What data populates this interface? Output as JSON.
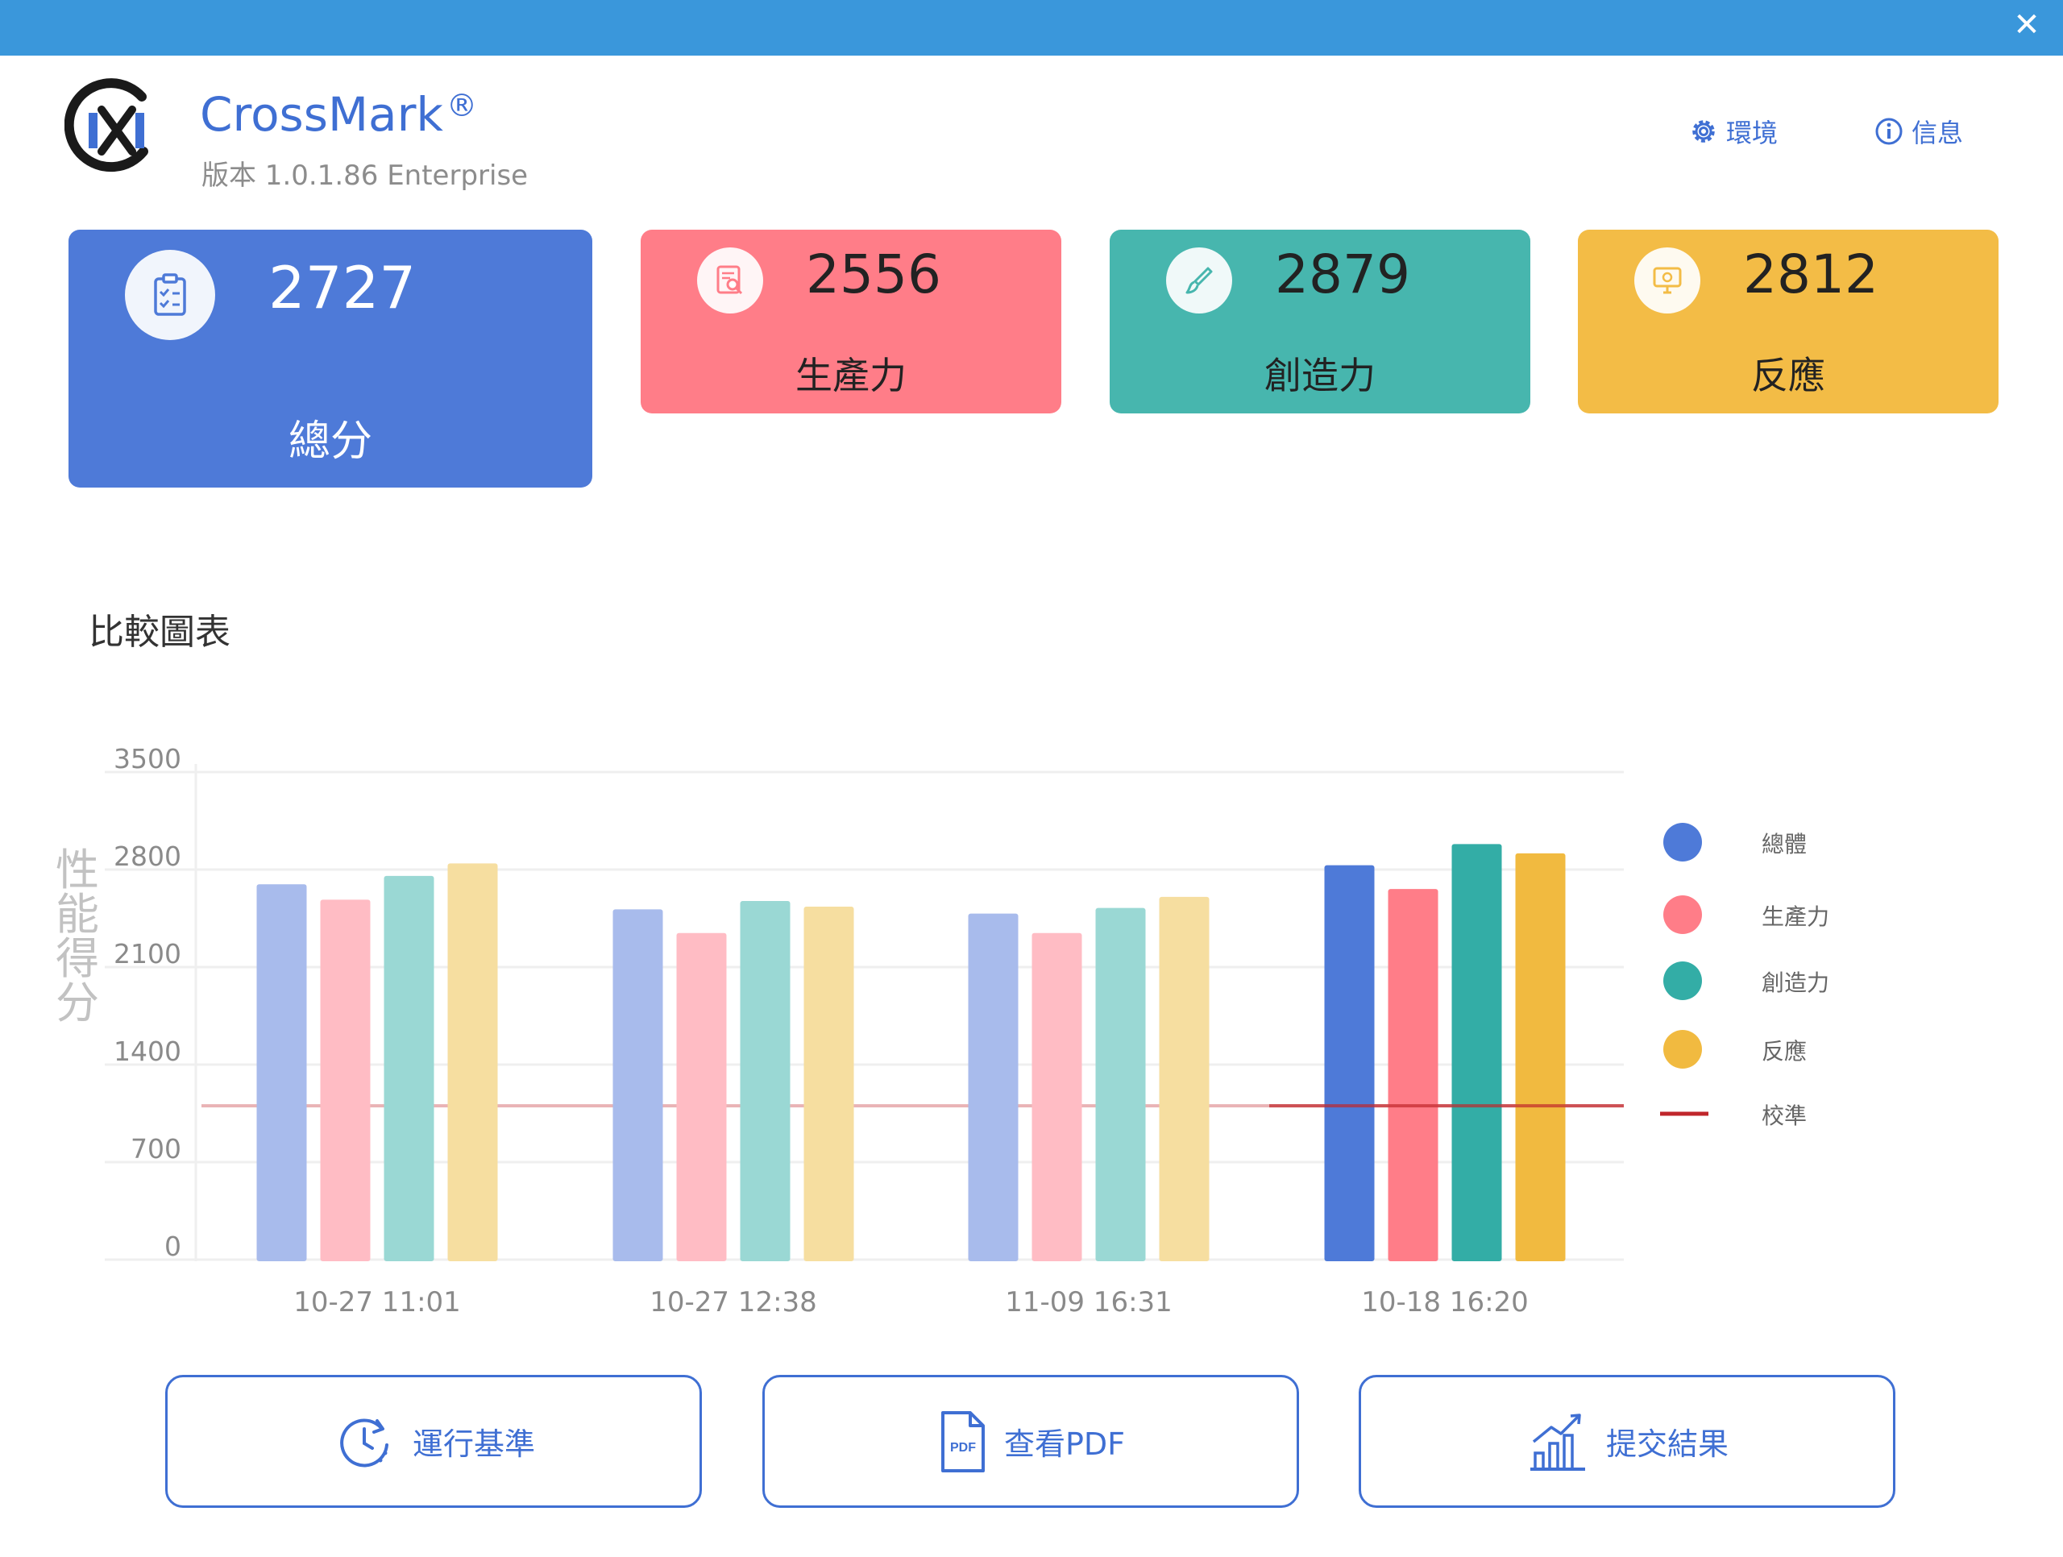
{
  "window": {
    "close_label": "✕"
  },
  "app": {
    "name": "CrossMark",
    "reg": "®",
    "version": "版本 1.0.1.86 Enterprise"
  },
  "header": {
    "settings_label": "環境",
    "info_label": "信息"
  },
  "scores": {
    "total": {
      "value": "2727",
      "label": "總分"
    },
    "productivity": {
      "value": "2556",
      "label": "生產力"
    },
    "creativity": {
      "value": "2879",
      "label": "創造力"
    },
    "responsiveness": {
      "value": "2812",
      "label": "反應"
    }
  },
  "comparison": {
    "title": "比較圖表"
  },
  "colors": {
    "total": "#4e7ad8",
    "productivity": "#ff7d88",
    "creativity": "#33ada6",
    "responsiveness": "#f1ba40",
    "calibration": "#c0262b"
  },
  "chart_data": {
    "type": "bar",
    "ylabel": "性能得分",
    "ylim": [
      0,
      3500
    ],
    "yticks": [
      0,
      700,
      1400,
      2100,
      2800,
      3500
    ],
    "grid": true,
    "legend_position": "right",
    "categories": [
      "10-27 11:01",
      "10-27 12:38",
      "11-09 16:31",
      "10-18 16:20"
    ],
    "highlight_category": 3,
    "series": [
      {
        "name": "總體",
        "color": "#4e7ad8",
        "faded_color": "#a8bbec",
        "values": [
          2590,
          2410,
          2380,
          2727
        ]
      },
      {
        "name": "生產力",
        "color": "#ff7d88",
        "faded_color": "#ffbcc4",
        "values": [
          2480,
          2240,
          2240,
          2556
        ]
      },
      {
        "name": "創造力",
        "color": "#33ada6",
        "faded_color": "#9ad8d4",
        "values": [
          2650,
          2470,
          2420,
          2879
        ]
      },
      {
        "name": "反應",
        "color": "#f1ba40",
        "faded_color": "#f6dea0",
        "values": [
          2740,
          2430,
          2500,
          2812
        ]
      }
    ],
    "reference_line": {
      "name": "校準",
      "value": 1000,
      "color": "#c0262b"
    }
  },
  "actions": {
    "run_label": "運行基準",
    "pdf_label": "查看PDF",
    "pdf_icon_text": "PDF",
    "submit_label": "提交結果"
  }
}
